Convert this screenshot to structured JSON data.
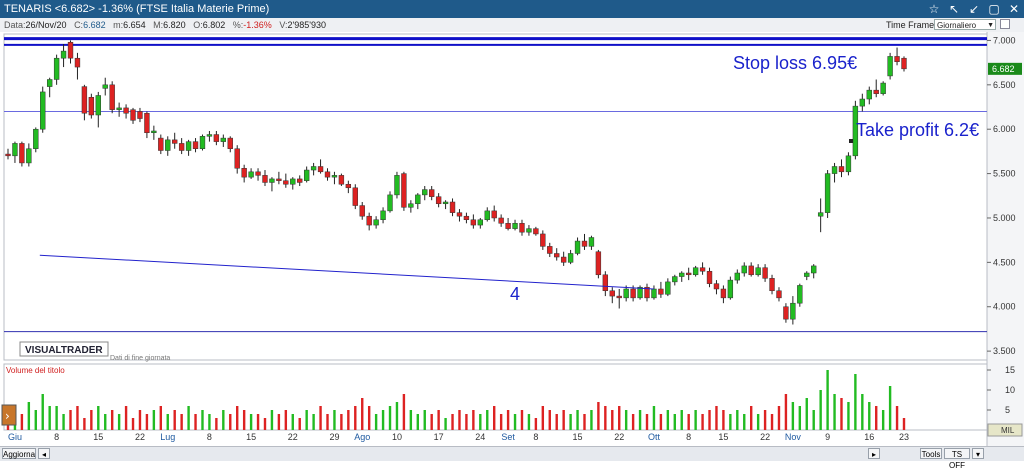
{
  "window": {
    "title": "TENARIS <6.682> -1.36%  (FTSE Italia Materie Prime)",
    "controls": [
      "☆",
      "↖",
      "↙",
      "▢",
      "✕"
    ]
  },
  "quote": {
    "date_label": "Data:",
    "date": "26/Nov/20",
    "close_label": "C:",
    "close": "6.682",
    "low_label": "m:",
    "low": "6.654",
    "high_label": "M:",
    "high": "6.820",
    "open_label": "O:",
    "open": "6.802",
    "pct_label": "%:",
    "pct": "-1.36%",
    "vol_label": "V:",
    "vol": "2'985'930"
  },
  "timeframe": {
    "label": "Time Frame",
    "value": "Giornaliero"
  },
  "annotations": {
    "stop_loss": "Stop loss 6.95€",
    "take_profit": "Take profit 6.2€",
    "count": "4"
  },
  "branding": {
    "logo": "VISUALTRADER",
    "note": "Dati di fine giornata"
  },
  "volume_panel": {
    "title": "Volume del titolo",
    "unit_badge": "MIL"
  },
  "price_badge": "6.682",
  "bottom": {
    "update": "Aggiorna",
    "tools": "Tools",
    "tsoff": "TS OFF"
  },
  "colors": {
    "up": "#22bb22",
    "down": "#dd2222",
    "line": "#2222cc",
    "accent": "#1f5a8a"
  },
  "chart_data": {
    "type": "candlestick",
    "price_axis": {
      "ylim": [
        3.4,
        7.05
      ],
      "ticks": [
        "7.000",
        "6.500",
        "6.000",
        "5.500",
        "5.000",
        "4.500",
        "4.000",
        "3.500"
      ]
    },
    "volume_axis": {
      "ylim": [
        0,
        16
      ],
      "ticks": [
        "15",
        "10",
        "5"
      ]
    },
    "x_labels": [
      "Giu",
      "8",
      "15",
      "22",
      "Lug",
      "8",
      "15",
      "22",
      "29",
      "Ago",
      "10",
      "17",
      "24",
      "Set",
      "8",
      "15",
      "22",
      "Ott",
      "8",
      "15",
      "22",
      "Nov",
      "9",
      "16",
      "23"
    ],
    "horizontal_lines": [
      7.02,
      6.95,
      6.2,
      3.72
    ],
    "trendline": [
      [
        4.58,
        4.58
      ],
      [
        93,
        4.2
      ]
    ],
    "candles": [
      {
        "o": 5.72,
        "h": 5.78,
        "l": 5.66,
        "c": 5.7,
        "v": 5
      },
      {
        "o": 5.7,
        "h": 5.86,
        "l": 5.62,
        "c": 5.84,
        "v": 6
      },
      {
        "o": 5.84,
        "h": 5.86,
        "l": 5.58,
        "c": 5.62,
        "v": 4
      },
      {
        "o": 5.62,
        "h": 5.84,
        "l": 5.58,
        "c": 5.78,
        "v": 7
      },
      {
        "o": 5.78,
        "h": 6.02,
        "l": 5.74,
        "c": 6.0,
        "v": 5
      },
      {
        "o": 6.0,
        "h": 6.48,
        "l": 5.96,
        "c": 6.42,
        "v": 9
      },
      {
        "o": 6.48,
        "h": 6.58,
        "l": 6.36,
        "c": 6.56,
        "v": 6
      },
      {
        "o": 6.56,
        "h": 6.84,
        "l": 6.5,
        "c": 6.8,
        "v": 6
      },
      {
        "o": 6.8,
        "h": 6.96,
        "l": 6.7,
        "c": 6.88,
        "v": 4
      },
      {
        "o": 6.98,
        "h": 7.0,
        "l": 6.74,
        "c": 6.8,
        "v": 5
      },
      {
        "o": 6.8,
        "h": 6.86,
        "l": 6.56,
        "c": 6.7,
        "v": 6
      },
      {
        "o": 6.48,
        "h": 6.5,
        "l": 6.1,
        "c": 6.18,
        "v": 3
      },
      {
        "o": 6.36,
        "h": 6.4,
        "l": 6.12,
        "c": 6.16,
        "v": 5
      },
      {
        "o": 6.16,
        "h": 6.42,
        "l": 6.02,
        "c": 6.38,
        "v": 6
      },
      {
        "o": 6.46,
        "h": 6.58,
        "l": 6.38,
        "c": 6.5,
        "v": 4
      },
      {
        "o": 6.5,
        "h": 6.54,
        "l": 6.18,
        "c": 6.22,
        "v": 5
      },
      {
        "o": 6.22,
        "h": 6.3,
        "l": 6.14,
        "c": 6.24,
        "v": 4
      },
      {
        "o": 6.24,
        "h": 6.28,
        "l": 6.12,
        "c": 6.18,
        "v": 6
      },
      {
        "o": 6.22,
        "h": 6.24,
        "l": 6.06,
        "c": 6.1,
        "v": 3
      },
      {
        "o": 6.2,
        "h": 6.24,
        "l": 6.08,
        "c": 6.12,
        "v": 5
      },
      {
        "o": 6.18,
        "h": 6.2,
        "l": 5.9,
        "c": 5.96,
        "v": 4
      },
      {
        "o": 5.96,
        "h": 6.04,
        "l": 5.88,
        "c": 5.98,
        "v": 5
      },
      {
        "o": 5.9,
        "h": 5.94,
        "l": 5.72,
        "c": 5.76,
        "v": 6
      },
      {
        "o": 5.76,
        "h": 5.92,
        "l": 5.7,
        "c": 5.88,
        "v": 4
      },
      {
        "o": 5.88,
        "h": 5.96,
        "l": 5.78,
        "c": 5.84,
        "v": 5
      },
      {
        "o": 5.84,
        "h": 5.9,
        "l": 5.72,
        "c": 5.76,
        "v": 4
      },
      {
        "o": 5.76,
        "h": 5.88,
        "l": 5.7,
        "c": 5.86,
        "v": 6
      },
      {
        "o": 5.86,
        "h": 5.9,
        "l": 5.74,
        "c": 5.78,
        "v": 4
      },
      {
        "o": 5.78,
        "h": 5.94,
        "l": 5.76,
        "c": 5.92,
        "v": 5
      },
      {
        "o": 5.92,
        "h": 5.98,
        "l": 5.86,
        "c": 5.94,
        "v": 4
      },
      {
        "o": 5.94,
        "h": 5.98,
        "l": 5.82,
        "c": 5.86,
        "v": 3
      },
      {
        "o": 5.86,
        "h": 5.94,
        "l": 5.8,
        "c": 5.9,
        "v": 5
      },
      {
        "o": 5.9,
        "h": 5.92,
        "l": 5.74,
        "c": 5.78,
        "v": 4
      },
      {
        "o": 5.78,
        "h": 5.82,
        "l": 5.5,
        "c": 5.56,
        "v": 6
      },
      {
        "o": 5.56,
        "h": 5.6,
        "l": 5.4,
        "c": 5.46,
        "v": 5
      },
      {
        "o": 5.46,
        "h": 5.56,
        "l": 5.44,
        "c": 5.52,
        "v": 4
      },
      {
        "o": 5.52,
        "h": 5.56,
        "l": 5.42,
        "c": 5.48,
        "v": 4
      },
      {
        "o": 5.48,
        "h": 5.54,
        "l": 5.36,
        "c": 5.4,
        "v": 3
      },
      {
        "o": 5.4,
        "h": 5.46,
        "l": 5.3,
        "c": 5.44,
        "v": 5
      },
      {
        "o": 5.44,
        "h": 5.52,
        "l": 5.38,
        "c": 5.42,
        "v": 4
      },
      {
        "o": 5.42,
        "h": 5.5,
        "l": 5.34,
        "c": 5.38,
        "v": 5
      },
      {
        "o": 5.38,
        "h": 5.46,
        "l": 5.32,
        "c": 5.44,
        "v": 4
      },
      {
        "o": 5.44,
        "h": 5.48,
        "l": 5.36,
        "c": 5.4,
        "v": 3
      },
      {
        "o": 5.42,
        "h": 5.58,
        "l": 5.4,
        "c": 5.54,
        "v": 5
      },
      {
        "o": 5.54,
        "h": 5.62,
        "l": 5.48,
        "c": 5.58,
        "v": 4
      },
      {
        "o": 5.58,
        "h": 5.66,
        "l": 5.5,
        "c": 5.52,
        "v": 6
      },
      {
        "o": 5.52,
        "h": 5.56,
        "l": 5.42,
        "c": 5.46,
        "v": 4
      },
      {
        "o": 5.46,
        "h": 5.52,
        "l": 5.38,
        "c": 5.48,
        "v": 5
      },
      {
        "o": 5.48,
        "h": 5.5,
        "l": 5.36,
        "c": 5.38,
        "v": 4
      },
      {
        "o": 5.38,
        "h": 5.42,
        "l": 5.28,
        "c": 5.34,
        "v": 5
      },
      {
        "o": 5.34,
        "h": 5.38,
        "l": 5.1,
        "c": 5.14,
        "v": 6
      },
      {
        "o": 5.14,
        "h": 5.18,
        "l": 4.98,
        "c": 5.02,
        "v": 8
      },
      {
        "o": 5.02,
        "h": 5.06,
        "l": 4.86,
        "c": 4.92,
        "v": 6
      },
      {
        "o": 4.92,
        "h": 5.02,
        "l": 4.88,
        "c": 4.98,
        "v": 4
      },
      {
        "o": 4.98,
        "h": 5.12,
        "l": 4.94,
        "c": 5.08,
        "v": 5
      },
      {
        "o": 5.08,
        "h": 5.3,
        "l": 5.06,
        "c": 5.26,
        "v": 6
      },
      {
        "o": 5.26,
        "h": 5.52,
        "l": 5.22,
        "c": 5.48,
        "v": 7
      },
      {
        "o": 5.5,
        "h": 5.52,
        "l": 5.08,
        "c": 5.12,
        "v": 9
      },
      {
        "o": 5.12,
        "h": 5.2,
        "l": 5.06,
        "c": 5.16,
        "v": 5
      },
      {
        "o": 5.16,
        "h": 5.28,
        "l": 5.1,
        "c": 5.26,
        "v": 4
      },
      {
        "o": 5.26,
        "h": 5.36,
        "l": 5.2,
        "c": 5.32,
        "v": 5
      },
      {
        "o": 5.32,
        "h": 5.36,
        "l": 5.2,
        "c": 5.24,
        "v": 4
      },
      {
        "o": 5.24,
        "h": 5.28,
        "l": 5.12,
        "c": 5.16,
        "v": 5
      },
      {
        "o": 5.16,
        "h": 5.2,
        "l": 5.1,
        "c": 5.18,
        "v": 3
      },
      {
        "o": 5.18,
        "h": 5.22,
        "l": 5.02,
        "c": 5.06,
        "v": 4
      },
      {
        "o": 5.06,
        "h": 5.1,
        "l": 4.96,
        "c": 5.02,
        "v": 5
      },
      {
        "o": 5.02,
        "h": 5.06,
        "l": 4.94,
        "c": 4.98,
        "v": 4
      },
      {
        "o": 4.98,
        "h": 5.04,
        "l": 4.88,
        "c": 4.92,
        "v": 5
      },
      {
        "o": 4.92,
        "h": 5.0,
        "l": 4.88,
        "c": 4.98,
        "v": 4
      },
      {
        "o": 4.98,
        "h": 5.12,
        "l": 4.96,
        "c": 5.08,
        "v": 5
      },
      {
        "o": 5.08,
        "h": 5.14,
        "l": 4.96,
        "c": 5.0,
        "v": 6
      },
      {
        "o": 5.0,
        "h": 5.04,
        "l": 4.9,
        "c": 4.94,
        "v": 4
      },
      {
        "o": 4.94,
        "h": 5.0,
        "l": 4.86,
        "c": 4.88,
        "v": 5
      },
      {
        "o": 4.88,
        "h": 4.98,
        "l": 4.86,
        "c": 4.94,
        "v": 4
      },
      {
        "o": 4.94,
        "h": 4.98,
        "l": 4.8,
        "c": 4.84,
        "v": 5
      },
      {
        "o": 4.84,
        "h": 4.92,
        "l": 4.8,
        "c": 4.88,
        "v": 4
      },
      {
        "o": 4.88,
        "h": 4.9,
        "l": 4.8,
        "c": 4.82,
        "v": 3
      },
      {
        "o": 4.82,
        "h": 4.86,
        "l": 4.64,
        "c": 4.68,
        "v": 6
      },
      {
        "o": 4.68,
        "h": 4.72,
        "l": 4.56,
        "c": 4.6,
        "v": 5
      },
      {
        "o": 4.6,
        "h": 4.66,
        "l": 4.52,
        "c": 4.56,
        "v": 4
      },
      {
        "o": 4.56,
        "h": 4.62,
        "l": 4.46,
        "c": 4.5,
        "v": 5
      },
      {
        "o": 4.5,
        "h": 4.64,
        "l": 4.48,
        "c": 4.6,
        "v": 4
      },
      {
        "o": 4.6,
        "h": 4.78,
        "l": 4.58,
        "c": 4.74,
        "v": 5
      },
      {
        "o": 4.74,
        "h": 4.82,
        "l": 4.64,
        "c": 4.68,
        "v": 4
      },
      {
        "o": 4.68,
        "h": 4.8,
        "l": 4.64,
        "c": 4.78,
        "v": 5
      },
      {
        "o": 4.62,
        "h": 4.64,
        "l": 4.32,
        "c": 4.36,
        "v": 7
      },
      {
        "o": 4.36,
        "h": 4.4,
        "l": 4.12,
        "c": 4.18,
        "v": 6
      },
      {
        "o": 4.18,
        "h": 4.22,
        "l": 4.04,
        "c": 4.12,
        "v": 5
      },
      {
        "o": 4.12,
        "h": 4.2,
        "l": 3.98,
        "c": 4.1,
        "v": 6
      },
      {
        "o": 4.1,
        "h": 4.24,
        "l": 4.06,
        "c": 4.2,
        "v": 5
      },
      {
        "o": 4.2,
        "h": 4.24,
        "l": 4.06,
        "c": 4.1,
        "v": 4
      },
      {
        "o": 4.1,
        "h": 4.24,
        "l": 4.08,
        "c": 4.22,
        "v": 5
      },
      {
        "o": 4.22,
        "h": 4.26,
        "l": 4.06,
        "c": 4.1,
        "v": 4
      },
      {
        "o": 4.1,
        "h": 4.24,
        "l": 4.08,
        "c": 4.2,
        "v": 6
      },
      {
        "o": 4.2,
        "h": 4.28,
        "l": 4.1,
        "c": 4.14,
        "v": 4
      },
      {
        "o": 4.14,
        "h": 4.32,
        "l": 4.12,
        "c": 4.28,
        "v": 5
      },
      {
        "o": 4.28,
        "h": 4.36,
        "l": 4.24,
        "c": 4.34,
        "v": 4
      },
      {
        "o": 4.34,
        "h": 4.4,
        "l": 4.28,
        "c": 4.38,
        "v": 5
      },
      {
        "o": 4.38,
        "h": 4.44,
        "l": 4.3,
        "c": 4.36,
        "v": 4
      },
      {
        "o": 4.36,
        "h": 4.46,
        "l": 4.34,
        "c": 4.44,
        "v": 5
      },
      {
        "o": 4.44,
        "h": 4.5,
        "l": 4.36,
        "c": 4.4,
        "v": 4
      },
      {
        "o": 4.4,
        "h": 4.44,
        "l": 4.22,
        "c": 4.26,
        "v": 5
      },
      {
        "o": 4.26,
        "h": 4.3,
        "l": 4.14,
        "c": 4.2,
        "v": 6
      },
      {
        "o": 4.2,
        "h": 4.24,
        "l": 4.04,
        "c": 4.1,
        "v": 5
      },
      {
        "o": 4.1,
        "h": 4.34,
        "l": 4.08,
        "c": 4.3,
        "v": 4
      },
      {
        "o": 4.3,
        "h": 4.42,
        "l": 4.26,
        "c": 4.38,
        "v": 5
      },
      {
        "o": 4.38,
        "h": 4.5,
        "l": 4.34,
        "c": 4.46,
        "v": 4
      },
      {
        "o": 4.46,
        "h": 4.5,
        "l": 4.34,
        "c": 4.36,
        "v": 6
      },
      {
        "o": 4.36,
        "h": 4.48,
        "l": 4.34,
        "c": 4.44,
        "v": 4
      },
      {
        "o": 4.44,
        "h": 4.48,
        "l": 4.28,
        "c": 4.32,
        "v": 5
      },
      {
        "o": 4.32,
        "h": 4.36,
        "l": 4.14,
        "c": 4.18,
        "v": 4
      },
      {
        "o": 4.18,
        "h": 4.22,
        "l": 4.06,
        "c": 4.1,
        "v": 6
      },
      {
        "o": 4.0,
        "h": 4.04,
        "l": 3.82,
        "c": 3.86,
        "v": 9
      },
      {
        "o": 3.86,
        "h": 4.12,
        "l": 3.8,
        "c": 4.04,
        "v": 7
      },
      {
        "o": 4.04,
        "h": 4.26,
        "l": 4.0,
        "c": 4.24,
        "v": 6
      },
      {
        "o": 4.34,
        "h": 4.4,
        "l": 4.3,
        "c": 4.38,
        "v": 8
      },
      {
        "o": 4.38,
        "h": 4.48,
        "l": 4.32,
        "c": 4.46,
        "v": 5
      },
      {
        "o": 5.02,
        "h": 5.22,
        "l": 4.84,
        "c": 5.06,
        "v": 10
      },
      {
        "o": 5.06,
        "h": 5.54,
        "l": 5.0,
        "c": 5.5,
        "v": 15
      },
      {
        "o": 5.5,
        "h": 5.62,
        "l": 5.4,
        "c": 5.58,
        "v": 9
      },
      {
        "o": 5.58,
        "h": 5.66,
        "l": 5.46,
        "c": 5.52,
        "v": 8
      },
      {
        "o": 5.52,
        "h": 5.74,
        "l": 5.48,
        "c": 5.7,
        "v": 7
      },
      {
        "o": 5.7,
        "h": 6.32,
        "l": 5.66,
        "c": 6.26,
        "v": 14
      },
      {
        "o": 6.26,
        "h": 6.4,
        "l": 6.2,
        "c": 6.34,
        "v": 9
      },
      {
        "o": 6.34,
        "h": 6.48,
        "l": 6.28,
        "c": 6.44,
        "v": 7
      },
      {
        "o": 6.44,
        "h": 6.56,
        "l": 6.36,
        "c": 6.4,
        "v": 6
      },
      {
        "o": 6.4,
        "h": 6.54,
        "l": 6.38,
        "c": 6.52,
        "v": 5
      },
      {
        "o": 6.6,
        "h": 6.86,
        "l": 6.56,
        "c": 6.82,
        "v": 11
      },
      {
        "o": 6.82,
        "h": 6.92,
        "l": 6.72,
        "c": 6.76,
        "v": 6
      },
      {
        "o": 6.8,
        "h": 6.82,
        "l": 6.65,
        "c": 6.68,
        "v": 3
      }
    ]
  }
}
